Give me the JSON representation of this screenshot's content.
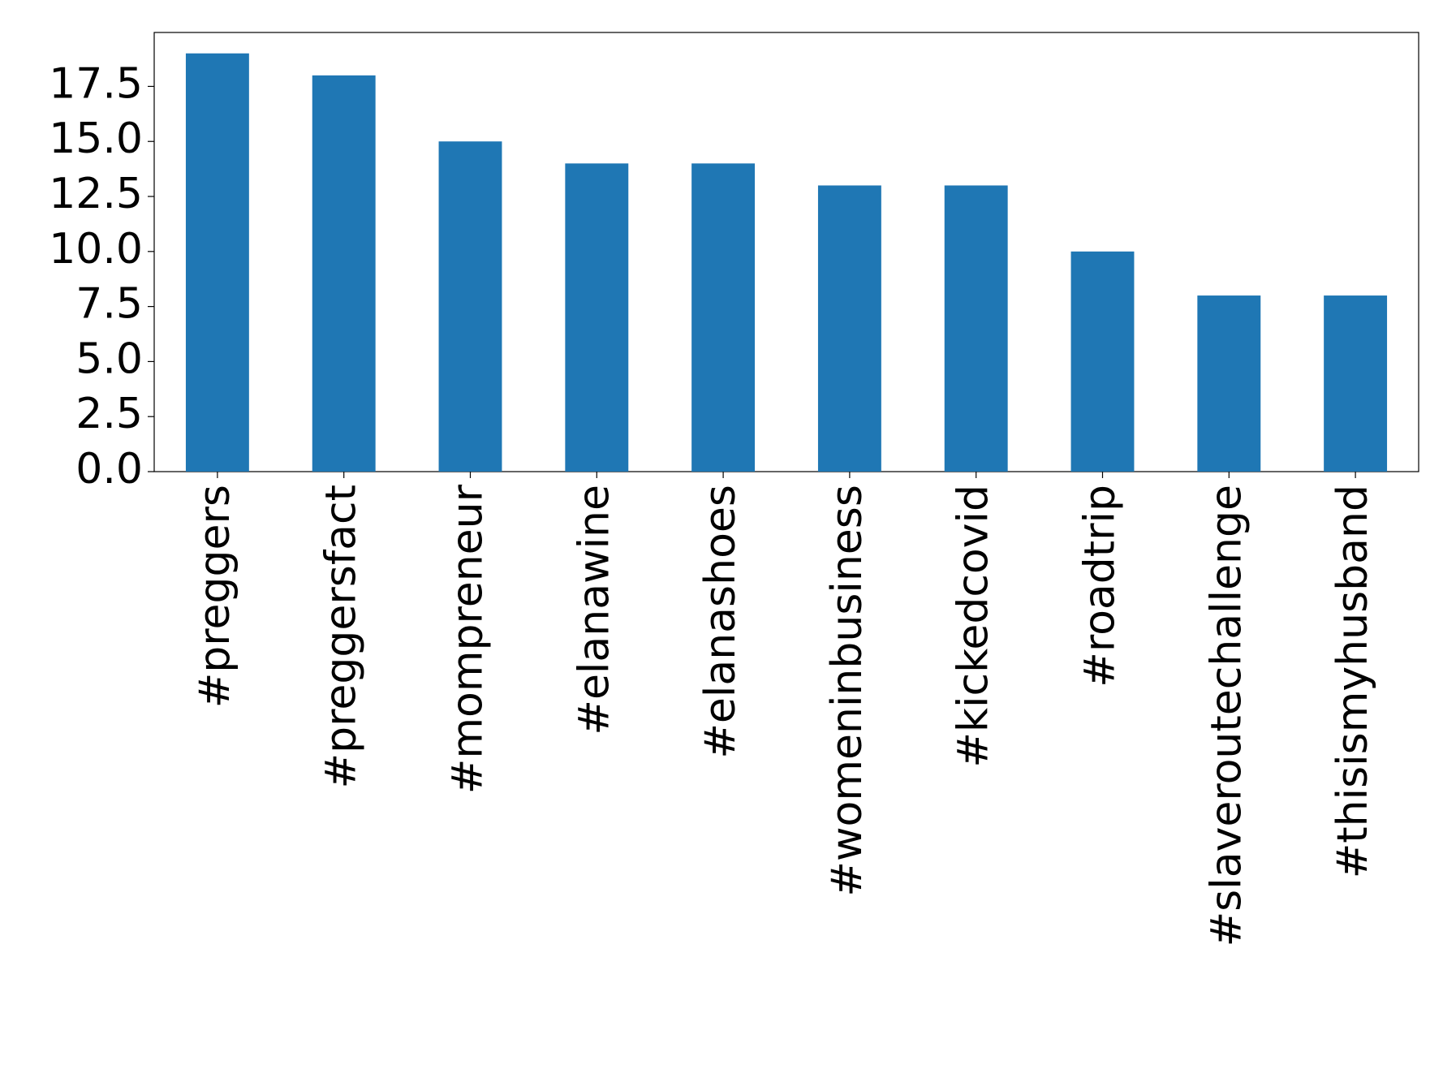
{
  "chart_data": {
    "type": "bar",
    "categories": [
      "#preggers",
      "#preggersfact",
      "#mompreneur",
      "#elanawine",
      "#elanashoes",
      "#womeninbusiness",
      "#kickedcovid",
      "#roadtrip",
      "#slaveroutechallenge",
      "#thisismyhusband"
    ],
    "values": [
      19,
      18,
      15,
      14,
      14,
      13,
      13,
      10,
      8,
      8
    ],
    "color": "#1f77b4",
    "ylim": [
      0,
      19.95
    ],
    "yticks": [
      {
        "value": 0,
        "label": "0.0"
      },
      2.5,
      {
        "value": 5,
        "label": "5.0"
      },
      7.5,
      {
        "value": 10,
        "label": "10.0"
      },
      12.5,
      {
        "value": 15,
        "label": "15.0"
      },
      17.5
    ],
    "grid": false
  }
}
